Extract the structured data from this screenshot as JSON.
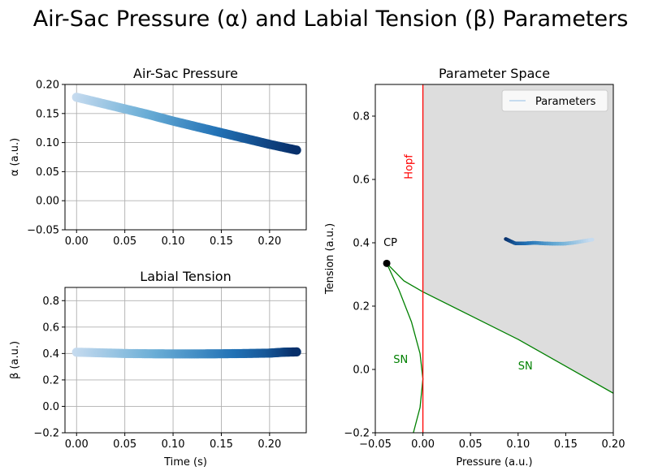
{
  "figure": {
    "suptitle": "Air-Sac Pressure (α) and Labial Tension (β) Parameters"
  },
  "chart_data": [
    {
      "type": "scatter",
      "title": "Air-Sac Pressure",
      "xlabel": "",
      "ylabel": "α (a.u.)",
      "xlim": [
        -0.012,
        0.238
      ],
      "ylim": [
        -0.05,
        0.2
      ],
      "xticks": [
        "0.00",
        "0.05",
        "0.10",
        "0.15",
        "0.20"
      ],
      "yticks": [
        "−0.05",
        "0.00",
        "0.05",
        "0.10",
        "0.15",
        "0.20"
      ],
      "grid": true,
      "colormap": [
        "#c6dbef",
        "#6baed6",
        "#2171b5",
        "#08306b"
      ],
      "series": [
        {
          "x": [
            0.0,
            0.025,
            0.05,
            0.075,
            0.1,
            0.125,
            0.15,
            0.175,
            0.2,
            0.228
          ],
          "y": [
            0.178,
            0.168,
            0.158,
            0.148,
            0.137,
            0.127,
            0.117,
            0.107,
            0.097,
            0.087
          ]
        }
      ]
    },
    {
      "type": "scatter",
      "title": "Labial Tension",
      "xlabel": "Time (s)",
      "ylabel": "β (a.u.)",
      "xlim": [
        -0.012,
        0.238
      ],
      "ylim": [
        -0.2,
        0.9
      ],
      "xticks": [
        "0.00",
        "0.05",
        "0.10",
        "0.15",
        "0.20"
      ],
      "yticks": [
        "−0.2",
        "0.0",
        "0.2",
        "0.4",
        "0.6",
        "0.8"
      ],
      "grid": true,
      "colormap": [
        "#c6dbef",
        "#6baed6",
        "#2171b5",
        "#08306b"
      ],
      "series": [
        {
          "x": [
            0.0,
            0.025,
            0.05,
            0.075,
            0.1,
            0.125,
            0.15,
            0.175,
            0.2,
            0.215,
            0.228
          ],
          "y": [
            0.41,
            0.405,
            0.4,
            0.398,
            0.397,
            0.397,
            0.398,
            0.4,
            0.403,
            0.41,
            0.412
          ]
        }
      ]
    },
    {
      "type": "line",
      "title": "Parameter Space",
      "xlabel": "Pressure (a.u.)",
      "ylabel": "Tension (a.u.)",
      "xlim": [
        -0.05,
        0.2
      ],
      "ylim": [
        -0.2,
        0.9
      ],
      "xticks": [
        "−0.05",
        "0.00",
        "0.05",
        "0.10",
        "0.15",
        "0.20"
      ],
      "yticks": [
        "−0.2",
        "0.0",
        "0.2",
        "0.4",
        "0.6",
        "0.8"
      ],
      "grid": false,
      "legend": {
        "placement": "top-right",
        "entries": [
          "Parameters"
        ]
      },
      "annotations": {
        "hopf": "Hopf",
        "cp": "CP",
        "sn_left": "SN",
        "sn_right": "SN"
      },
      "cusp_point": [
        -0.038,
        0.335
      ],
      "hopf_x": 0.0,
      "sn_right_curve": {
        "x": [
          -0.038,
          -0.02,
          0.0,
          0.05,
          0.1,
          0.15,
          0.2
        ],
        "y": [
          0.335,
          0.28,
          0.245,
          0.17,
          0.095,
          0.01,
          -0.075
        ]
      },
      "sn_left_curve": {
        "x": [
          -0.038,
          -0.025,
          -0.012,
          -0.003,
          0.0,
          -0.003,
          -0.01
        ],
        "y": [
          0.335,
          0.25,
          0.15,
          0.05,
          -0.03,
          -0.12,
          -0.2
        ]
      },
      "shaded_region": "oscillation region right of Hopf line",
      "series": [
        {
          "name": "Parameters",
          "x": [
            0.087,
            0.092,
            0.097,
            0.107,
            0.117,
            0.127,
            0.137,
            0.148,
            0.158,
            0.168,
            0.178
          ],
          "y": [
            0.412,
            0.405,
            0.398,
            0.398,
            0.4,
            0.398,
            0.397,
            0.397,
            0.4,
            0.405,
            0.41
          ]
        }
      ]
    }
  ]
}
